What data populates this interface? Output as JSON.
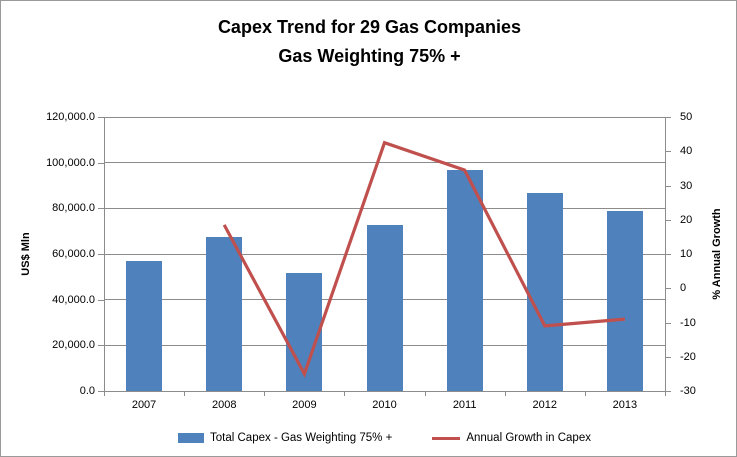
{
  "title": {
    "line1": "Capex Trend for 29 Gas Companies",
    "line2": "Gas Weighting 75% +"
  },
  "chart_data": {
    "type": "bar",
    "subtype": "bar-line combo, dual axis",
    "categories": [
      "2007",
      "2008",
      "2009",
      "2010",
      "2011",
      "2012",
      "2013"
    ],
    "series": [
      {
        "name": "Total Capex - Gas Weighting 75% +",
        "type": "bar",
        "axis": "left",
        "color": "#4F81BD",
        "values": [
          57000,
          67500,
          51500,
          72500,
          97000,
          86500,
          78700
        ]
      },
      {
        "name": "Annual Growth in Capex",
        "type": "line",
        "axis": "right",
        "color": "#C0504D",
        "values": [
          null,
          18.5,
          -25,
          42.5,
          34.5,
          -11,
          -9
        ]
      }
    ],
    "left_axis": {
      "title": "US$ Mln",
      "min": 0,
      "max": 120000,
      "step": 20000,
      "tick_labels": [
        "0.0",
        "20,000.0",
        "40,000.0",
        "60,000.0",
        "80,000.0",
        "100,000.0",
        "120,000.0"
      ]
    },
    "right_axis": {
      "title": "% Annual Growth",
      "min": -30,
      "max": 50,
      "step": 10,
      "tick_labels": [
        "-30",
        "-20",
        "-10",
        "0",
        "10",
        "20",
        "30",
        "40",
        "50"
      ]
    },
    "legend": [
      {
        "label": "Total Capex - Gas Weighting 75% +",
        "swatch": "bar",
        "color": "#4F81BD"
      },
      {
        "label": "Annual Growth in Capex",
        "swatch": "line",
        "color": "#C0504D"
      }
    ],
    "grid": true,
    "legend_position": "bottom"
  },
  "colors": {
    "bar": "#4F81BD",
    "line": "#C0504D",
    "grid": "#8C8C8C",
    "text": "#000000",
    "frame": "#9A9A9A",
    "background": "#FFFFFF"
  }
}
